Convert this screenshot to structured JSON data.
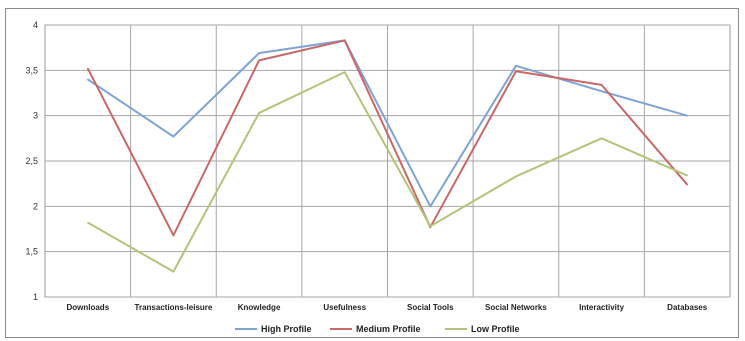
{
  "chart_data": {
    "type": "line",
    "title": "",
    "xlabel": "",
    "ylabel": "",
    "categories": [
      "Downloads",
      "Transactions-leisure",
      "Knowledge",
      "Usefulness",
      "Social Tools",
      "Social Networks",
      "Interactivity",
      "Databases"
    ],
    "ylim": [
      1,
      4
    ],
    "yticks": [
      "1",
      "1,5",
      "2",
      "2,5",
      "3",
      "3,5",
      "4"
    ],
    "ytick_values": [
      1,
      1.5,
      2,
      2.5,
      3,
      3.5,
      4
    ],
    "grid": true,
    "legend_position": "bottom",
    "series": [
      {
        "name": "High Profile",
        "color": "#7fa3d2",
        "values": [
          3.4,
          2.77,
          3.69,
          3.83,
          2.0,
          3.55,
          3.27,
          3.0
        ]
      },
      {
        "name": "Medium Profile",
        "color": "#c86868",
        "values": [
          3.52,
          1.68,
          3.61,
          3.83,
          1.77,
          3.49,
          3.34,
          2.24
        ]
      },
      {
        "name": "Low Profile",
        "color": "#b3c47a",
        "values": [
          1.82,
          1.28,
          3.03,
          3.48,
          1.78,
          2.33,
          2.75,
          2.34
        ]
      }
    ]
  }
}
